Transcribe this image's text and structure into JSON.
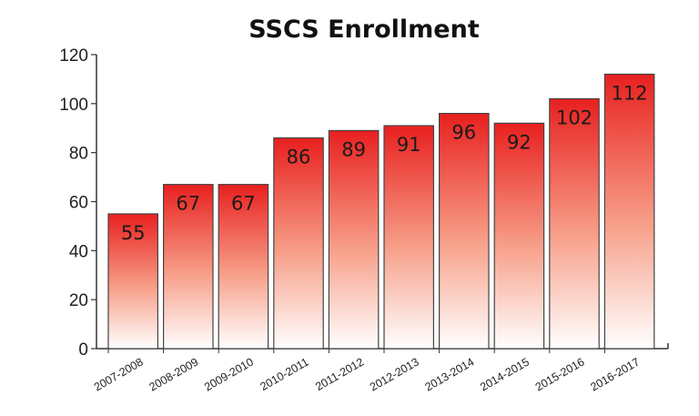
{
  "chart_data": {
    "type": "bar",
    "title": "SSCS Enrollment",
    "xlabel": "",
    "ylabel": "",
    "categories": [
      "2007-2008",
      "2008-2009",
      "2009-2010",
      "2010-2011",
      "2011-2012",
      "2012-2013",
      "2013-2014",
      "2014-2015",
      "2015-2016",
      "2016-2017"
    ],
    "values": [
      55,
      67,
      67,
      86,
      89,
      91,
      96,
      92,
      102,
      112
    ],
    "ylim": [
      0,
      120
    ],
    "yticks": [
      "0",
      "20",
      "40",
      "60",
      "80",
      "100",
      "120"
    ],
    "data_labels": [
      "55",
      "67",
      "67",
      "86",
      "89",
      "91",
      "96",
      "92",
      "102",
      "112"
    ],
    "grid": false,
    "legend": "none",
    "colors": {
      "bar_top": "#e8201f",
      "bar_bottom": "#ffffff",
      "bar_edge": "#444444",
      "axis": "#333333"
    }
  }
}
